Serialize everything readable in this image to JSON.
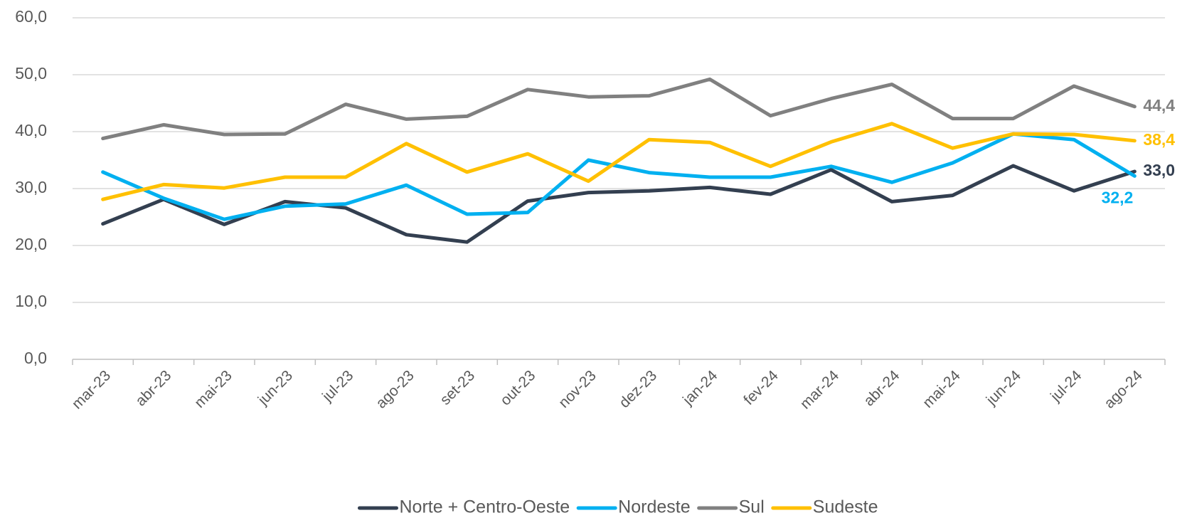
{
  "chart_data": {
    "type": "line",
    "categories": [
      "mar-23",
      "abr-23",
      "mai-23",
      "jun-23",
      "jul-23",
      "ago-23",
      "set-23",
      "out-23",
      "nov-23",
      "dez-23",
      "jan-24",
      "fev-24",
      "mar-24",
      "abr-24",
      "mai-24",
      "jun-24",
      "jul-24",
      "ago-24"
    ],
    "series": [
      {
        "name": "Norte + Centro-Oeste",
        "color": "#333f50",
        "values": [
          23.8,
          28.1,
          23.7,
          27.7,
          26.6,
          21.9,
          20.6,
          27.8,
          29.3,
          29.6,
          30.2,
          29.0,
          33.3,
          27.7,
          28.8,
          34.0,
          29.6,
          33.0
        ],
        "value_labels": [
          null,
          null,
          null,
          null,
          null,
          null,
          null,
          null,
          null,
          null,
          null,
          null,
          null,
          null,
          null,
          null,
          null,
          "33,0"
        ]
      },
      {
        "name": "Nordeste",
        "color": "#00b0f0",
        "values": [
          32.9,
          28.3,
          24.6,
          26.9,
          27.3,
          30.6,
          25.5,
          25.8,
          35.0,
          32.8,
          32.0,
          32.0,
          33.9,
          31.1,
          34.5,
          39.6,
          38.6,
          32.2
        ],
        "value_labels": [
          null,
          null,
          null,
          null,
          null,
          null,
          null,
          null,
          null,
          null,
          null,
          null,
          null,
          null,
          null,
          null,
          null,
          "32,2"
        ]
      },
      {
        "name": "Sul",
        "color": "#808080",
        "values": [
          38.8,
          41.2,
          39.5,
          39.6,
          44.8,
          42.2,
          42.7,
          47.4,
          46.1,
          46.3,
          49.2,
          42.8,
          45.8,
          48.3,
          42.3,
          42.3,
          48.0,
          44.4
        ],
        "value_labels": [
          null,
          null,
          null,
          null,
          null,
          null,
          null,
          null,
          null,
          null,
          null,
          null,
          null,
          null,
          null,
          null,
          null,
          "44,4"
        ]
      },
      {
        "name": "Sudeste",
        "color": "#ffc000",
        "values": [
          28.1,
          30.7,
          30.1,
          32.0,
          32.0,
          37.9,
          32.9,
          36.1,
          31.3,
          38.6,
          38.1,
          33.9,
          38.2,
          41.4,
          37.1,
          39.6,
          39.5,
          38.4
        ],
        "value_labels": [
          null,
          null,
          null,
          null,
          null,
          null,
          null,
          null,
          null,
          null,
          null,
          null,
          null,
          null,
          null,
          null,
          null,
          "38,4"
        ]
      }
    ],
    "ylim": [
      0,
      60
    ],
    "yticks": [
      {
        "value": 0,
        "label": "0,0"
      },
      {
        "value": 10,
        "label": "10,0"
      },
      {
        "value": 20,
        "label": "20,0"
      },
      {
        "value": 30,
        "label": "30,0"
      },
      {
        "value": 40,
        "label": "40,0"
      },
      {
        "value": 50,
        "label": "50,0"
      },
      {
        "value": 60,
        "label": "60,0"
      }
    ],
    "grid": true,
    "legend": "bottom"
  }
}
